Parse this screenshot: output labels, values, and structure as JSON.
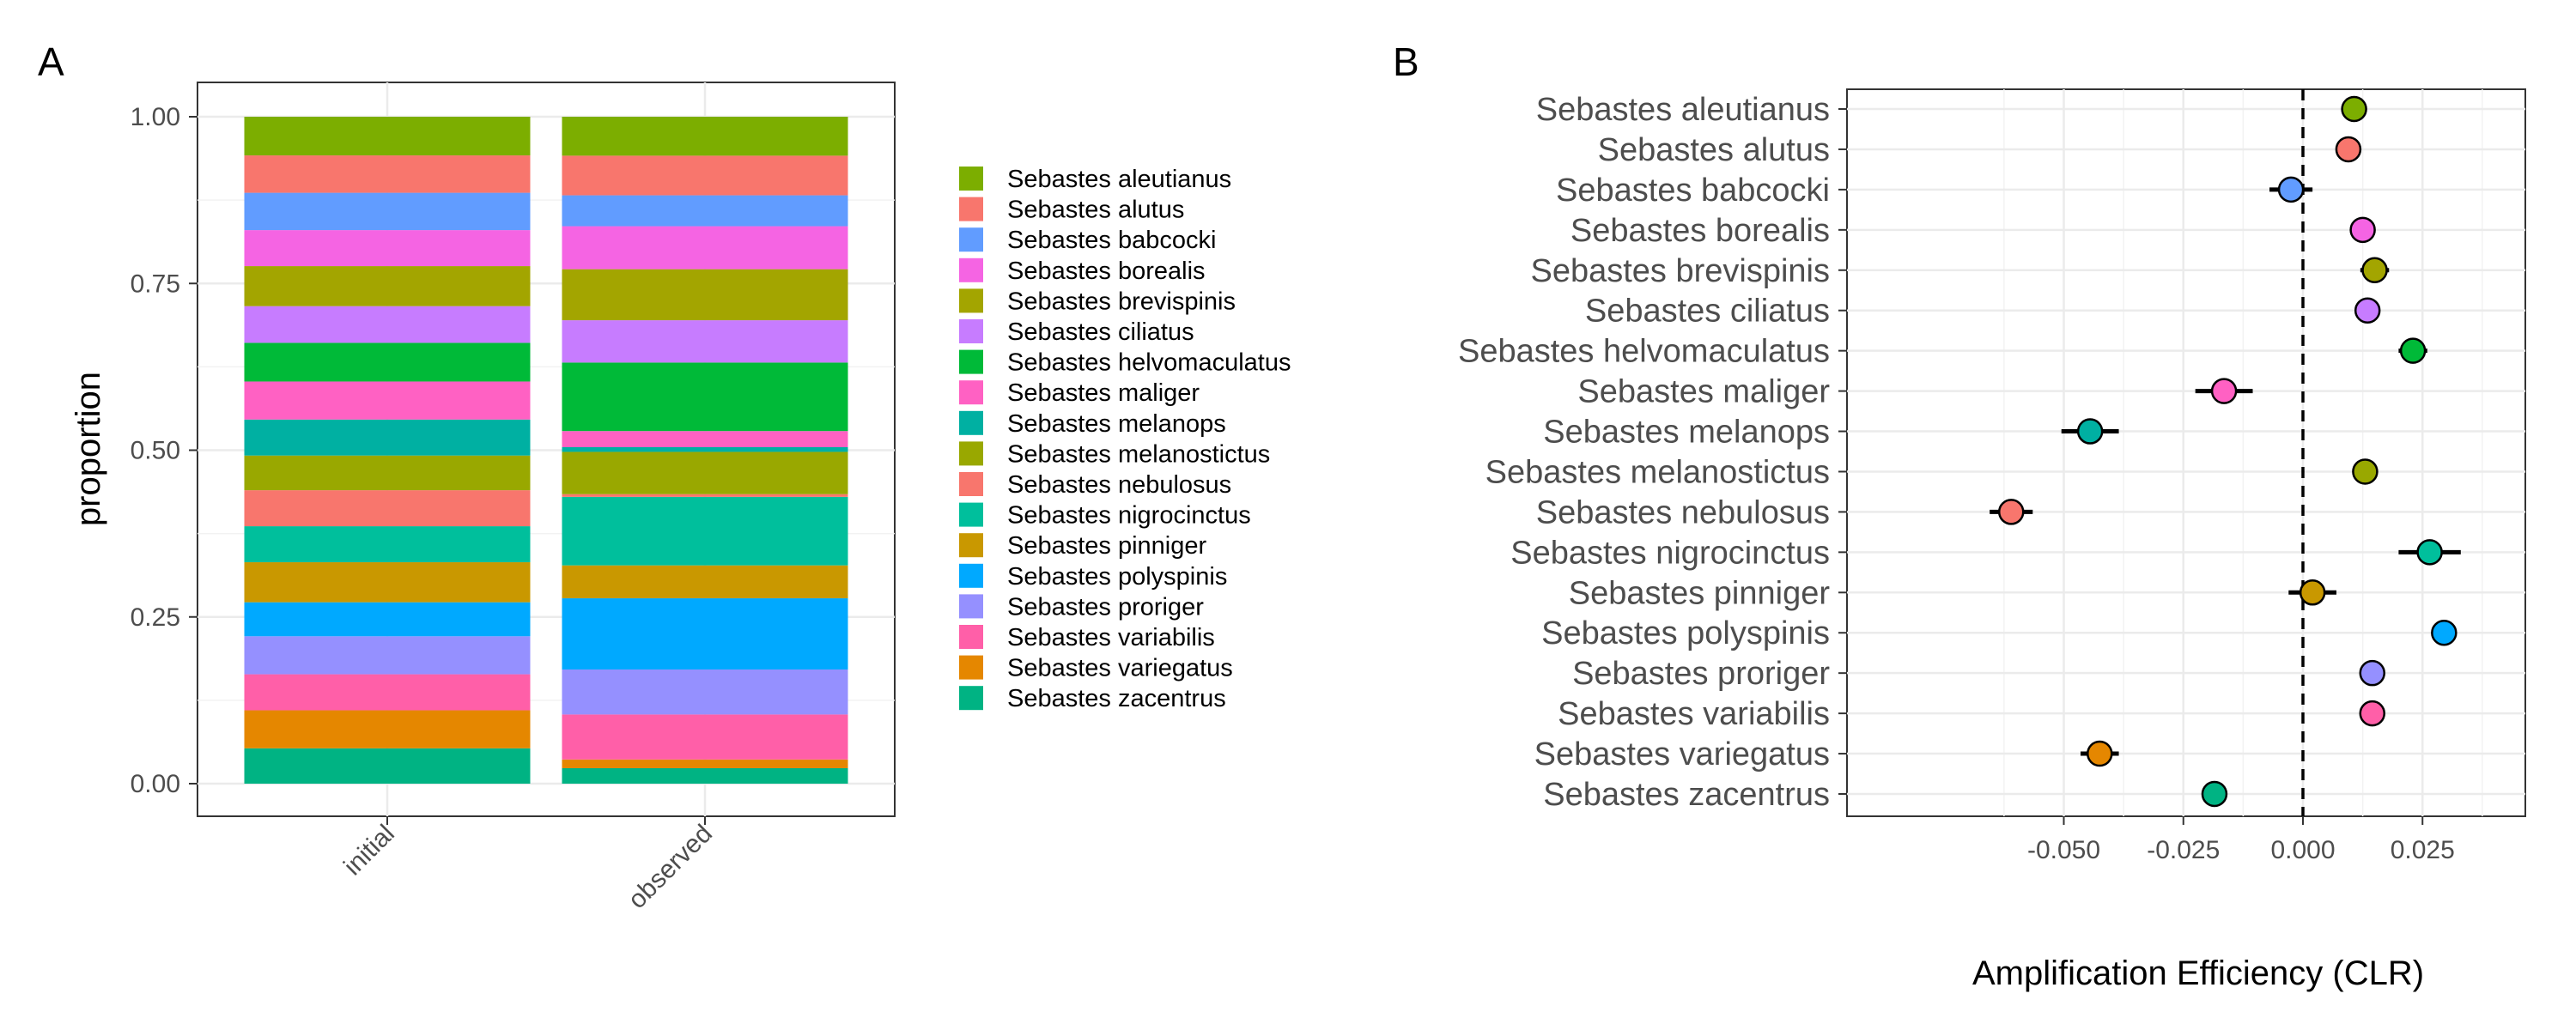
{
  "panels": {
    "a_label": "A",
    "b_label": "B"
  },
  "chart_data": [
    {
      "type": "bar",
      "stacked": true,
      "title": "",
      "xlabel": "",
      "ylabel": "proportion",
      "ylim": [
        0,
        1
      ],
      "yticks": [
        "0.00",
        "0.25",
        "0.50",
        "0.75",
        "1.00"
      ],
      "ytick_values": [
        0,
        0.25,
        0.5,
        0.75,
        1.0
      ],
      "categories": [
        "initial",
        "observed"
      ],
      "grid": true,
      "legend_position": "right",
      "series": [
        {
          "name": "Sebastes aleutianus",
          "color": "#7CAE00",
          "values": [
            0.058,
            0.058
          ]
        },
        {
          "name": "Sebastes alutus",
          "color": "#F8766D",
          "values": [
            0.056,
            0.059
          ]
        },
        {
          "name": "Sebastes babcocki",
          "color": "#619CFF",
          "values": [
            0.056,
            0.046
          ]
        },
        {
          "name": "Sebastes borealis",
          "color": "#F564E3",
          "values": [
            0.054,
            0.064
          ]
        },
        {
          "name": "Sebastes brevispinis",
          "color": "#A3A500",
          "values": [
            0.06,
            0.076
          ]
        },
        {
          "name": "Sebastes ciliatus",
          "color": "#C77CFF",
          "values": [
            0.055,
            0.063
          ]
        },
        {
          "name": "Sebastes helvomaculatus",
          "color": "#00BA38",
          "values": [
            0.058,
            0.102
          ]
        },
        {
          "name": "Sebastes maliger",
          "color": "#FF61C3",
          "values": [
            0.057,
            0.024
          ]
        },
        {
          "name": "Sebastes melanops",
          "color": "#00B0A2",
          "values": [
            0.054,
            0.007
          ]
        },
        {
          "name": "Sebastes melanostictus",
          "color": "#99A800",
          "values": [
            0.052,
            0.063
          ]
        },
        {
          "name": "Sebastes nebulosus",
          "color": "#F8766D",
          "values": [
            0.054,
            0.004
          ]
        },
        {
          "name": "Sebastes nigrocinctus",
          "color": "#00BF9C",
          "values": [
            0.054,
            0.102
          ]
        },
        {
          "name": "Sebastes pinniger",
          "color": "#C99800",
          "values": [
            0.06,
            0.049
          ]
        },
        {
          "name": "Sebastes polyspinis",
          "color": "#00A9FF",
          "values": [
            0.051,
            0.106
          ]
        },
        {
          "name": "Sebastes proriger",
          "color": "#9590FF",
          "values": [
            0.057,
            0.067
          ]
        },
        {
          "name": "Sebastes variabilis",
          "color": "#FF5FA8",
          "values": [
            0.054,
            0.067
          ]
        },
        {
          "name": "Sebastes variegatus",
          "color": "#E58700",
          "values": [
            0.057,
            0.013
          ]
        },
        {
          "name": "Sebastes zacentrus",
          "color": "#00B383",
          "values": [
            0.053,
            0.023
          ]
        }
      ]
    },
    {
      "type": "scatter",
      "subtype": "dot-with-errorbars",
      "title": "",
      "xlabel": "Amplification Efficiency (CLR)",
      "ylabel": "",
      "xlim": [
        -0.068,
        0.034
      ],
      "xticks": [
        "-0.050",
        "-0.025",
        "0.000",
        "0.025"
      ],
      "xtick_values": [
        -0.05,
        -0.025,
        0,
        0.025
      ],
      "reference_line": {
        "x": 0,
        "style": "dashed"
      },
      "grid": true,
      "points": [
        {
          "label": "Sebastes aleutianus",
          "x": 0.0107,
          "lo": 0.0107,
          "hi": 0.0107,
          "color": "#7CAE00"
        },
        {
          "label": "Sebastes alutus",
          "x": 0.0095,
          "lo": 0.0095,
          "hi": 0.0095,
          "color": "#F8766D"
        },
        {
          "label": "Sebastes babcocki",
          "x": -0.0025,
          "lo": -0.007,
          "hi": 0.002,
          "color": "#619CFF"
        },
        {
          "label": "Sebastes borealis",
          "x": 0.0125,
          "lo": 0.0125,
          "hi": 0.0125,
          "color": "#F564E3"
        },
        {
          "label": "Sebastes brevispinis",
          "x": 0.015,
          "lo": 0.012,
          "hi": 0.018,
          "color": "#A3A500"
        },
        {
          "label": "Sebastes ciliatus",
          "x": 0.0135,
          "lo": 0.0135,
          "hi": 0.0135,
          "color": "#C77CFF"
        },
        {
          "label": "Sebastes helvomaculatus",
          "x": 0.023,
          "lo": 0.02,
          "hi": 0.026,
          "color": "#00BA38"
        },
        {
          "label": "Sebastes maliger",
          "x": -0.0165,
          "lo": -0.0225,
          "hi": -0.0105,
          "color": "#FF61C3"
        },
        {
          "label": "Sebastes melanops",
          "x": -0.0445,
          "lo": -0.0505,
          "hi": -0.0385,
          "color": "#00B0A2"
        },
        {
          "label": "Sebastes melanostictus",
          "x": 0.013,
          "lo": 0.013,
          "hi": 0.013,
          "color": "#99A800"
        },
        {
          "label": "Sebastes nebulosus",
          "x": -0.061,
          "lo": -0.0655,
          "hi": -0.0565,
          "color": "#F8766D"
        },
        {
          "label": "Sebastes nigrocinctus",
          "x": 0.0265,
          "lo": 0.02,
          "hi": 0.033,
          "color": "#00BF9C"
        },
        {
          "label": "Sebastes pinniger",
          "x": 0.002,
          "lo": -0.003,
          "hi": 0.007,
          "color": "#C99800"
        },
        {
          "label": "Sebastes polyspinis",
          "x": 0.0295,
          "lo": 0.0295,
          "hi": 0.0295,
          "color": "#00A9FF"
        },
        {
          "label": "Sebastes proriger",
          "x": 0.0145,
          "lo": 0.0145,
          "hi": 0.0145,
          "color": "#9590FF"
        },
        {
          "label": "Sebastes variabilis",
          "x": 0.0145,
          "lo": 0.0145,
          "hi": 0.0145,
          "color": "#FF5FA8"
        },
        {
          "label": "Sebastes variegatus",
          "x": -0.0425,
          "lo": -0.0465,
          "hi": -0.0385,
          "color": "#E58700"
        },
        {
          "label": "Sebastes zacentrus",
          "x": -0.0185,
          "lo": -0.0185,
          "hi": -0.0185,
          "color": "#00B383"
        }
      ]
    }
  ]
}
